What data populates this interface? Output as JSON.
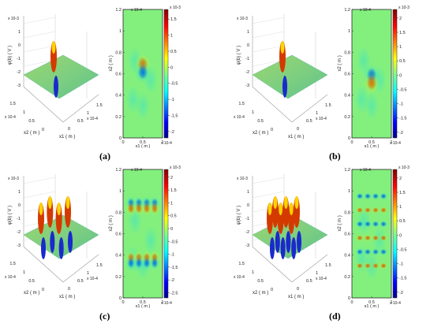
{
  "panels": [
    {
      "label": "(a)",
      "pattern": "single-dipole-positive-top"
    },
    {
      "label": "(b)",
      "pattern": "single-dipole-negative-top"
    },
    {
      "label": "(c)",
      "pattern": "two-rows-of-four-dipoles"
    },
    {
      "label": "(d)",
      "pattern": "grid-of-dipoles"
    }
  ],
  "axis_text": {
    "z_label": "φ(b) ( V )",
    "x1_label": "x1 ( m )",
    "x2_label": "x2 ( m )",
    "exp_z": "x 10-3",
    "exp_x": "x 10-4",
    "x_ticks": [
      "0",
      "0.5",
      "1"
    ],
    "y_ticks": [
      "0",
      "0.5",
      "1",
      "1.5"
    ],
    "z_ticks_top": [
      "1",
      "0",
      "-1",
      "-2",
      "-3"
    ],
    "x_ticks_3d": [
      "0",
      "0.5",
      "1",
      "1.5"
    ],
    "map_y_ticks": [
      "0",
      "0.2",
      "0.4",
      "0.6",
      "0.8",
      "1",
      "1.2"
    ]
  },
  "chart_data": [
    {
      "type": "heatmap",
      "panel": "(a)",
      "title": "",
      "xlabel": "x1 ( m )",
      "ylabel": "x2 ( m )",
      "xlim": [
        0,
        1
      ],
      "ylim": [
        0,
        1.2
      ],
      "x_scale": "x 10-4",
      "colorbar_ticks": [
        1.5,
        1,
        0.5,
        0,
        -0.5,
        -1,
        -1.5,
        -2
      ],
      "colorbar_scale": "x 10-3"
    },
    {
      "type": "heatmap",
      "panel": "(b)",
      "title": "",
      "xlabel": "x1 ( m )",
      "ylabel": "x2 ( m )",
      "xlim": [
        0,
        1
      ],
      "ylim": [
        0,
        1.2
      ],
      "x_scale": "x 10-4",
      "colorbar_ticks": [
        2,
        1.5,
        1,
        0.5,
        0,
        -0.5,
        -1,
        -1.5,
        -2
      ],
      "colorbar_scale": "x 10-3"
    },
    {
      "type": "heatmap",
      "panel": "(c)",
      "title": "",
      "xlabel": "x1 ( m )",
      "ylabel": "x2 ( m )",
      "xlim": [
        0,
        1
      ],
      "ylim": [
        0,
        1.2
      ],
      "x_scale": "x 10-4",
      "colorbar_ticks": [
        2,
        1.5,
        1,
        0.5,
        0,
        -0.5,
        -1,
        -1.5,
        -2,
        -2.5
      ],
      "colorbar_scale": "x 10-3"
    },
    {
      "type": "heatmap",
      "panel": "(d)",
      "title": "",
      "xlabel": "x1 ( m )",
      "ylabel": "x2 ( m )",
      "xlim": [
        0,
        1
      ],
      "ylim": [
        0,
        1.2
      ],
      "x_scale": "x 10-4",
      "colorbar_ticks": [
        2,
        1.5,
        1,
        0.5,
        0,
        -0.5,
        -1,
        -1.5,
        -2
      ],
      "colorbar_scale": "x 10-3"
    }
  ]
}
